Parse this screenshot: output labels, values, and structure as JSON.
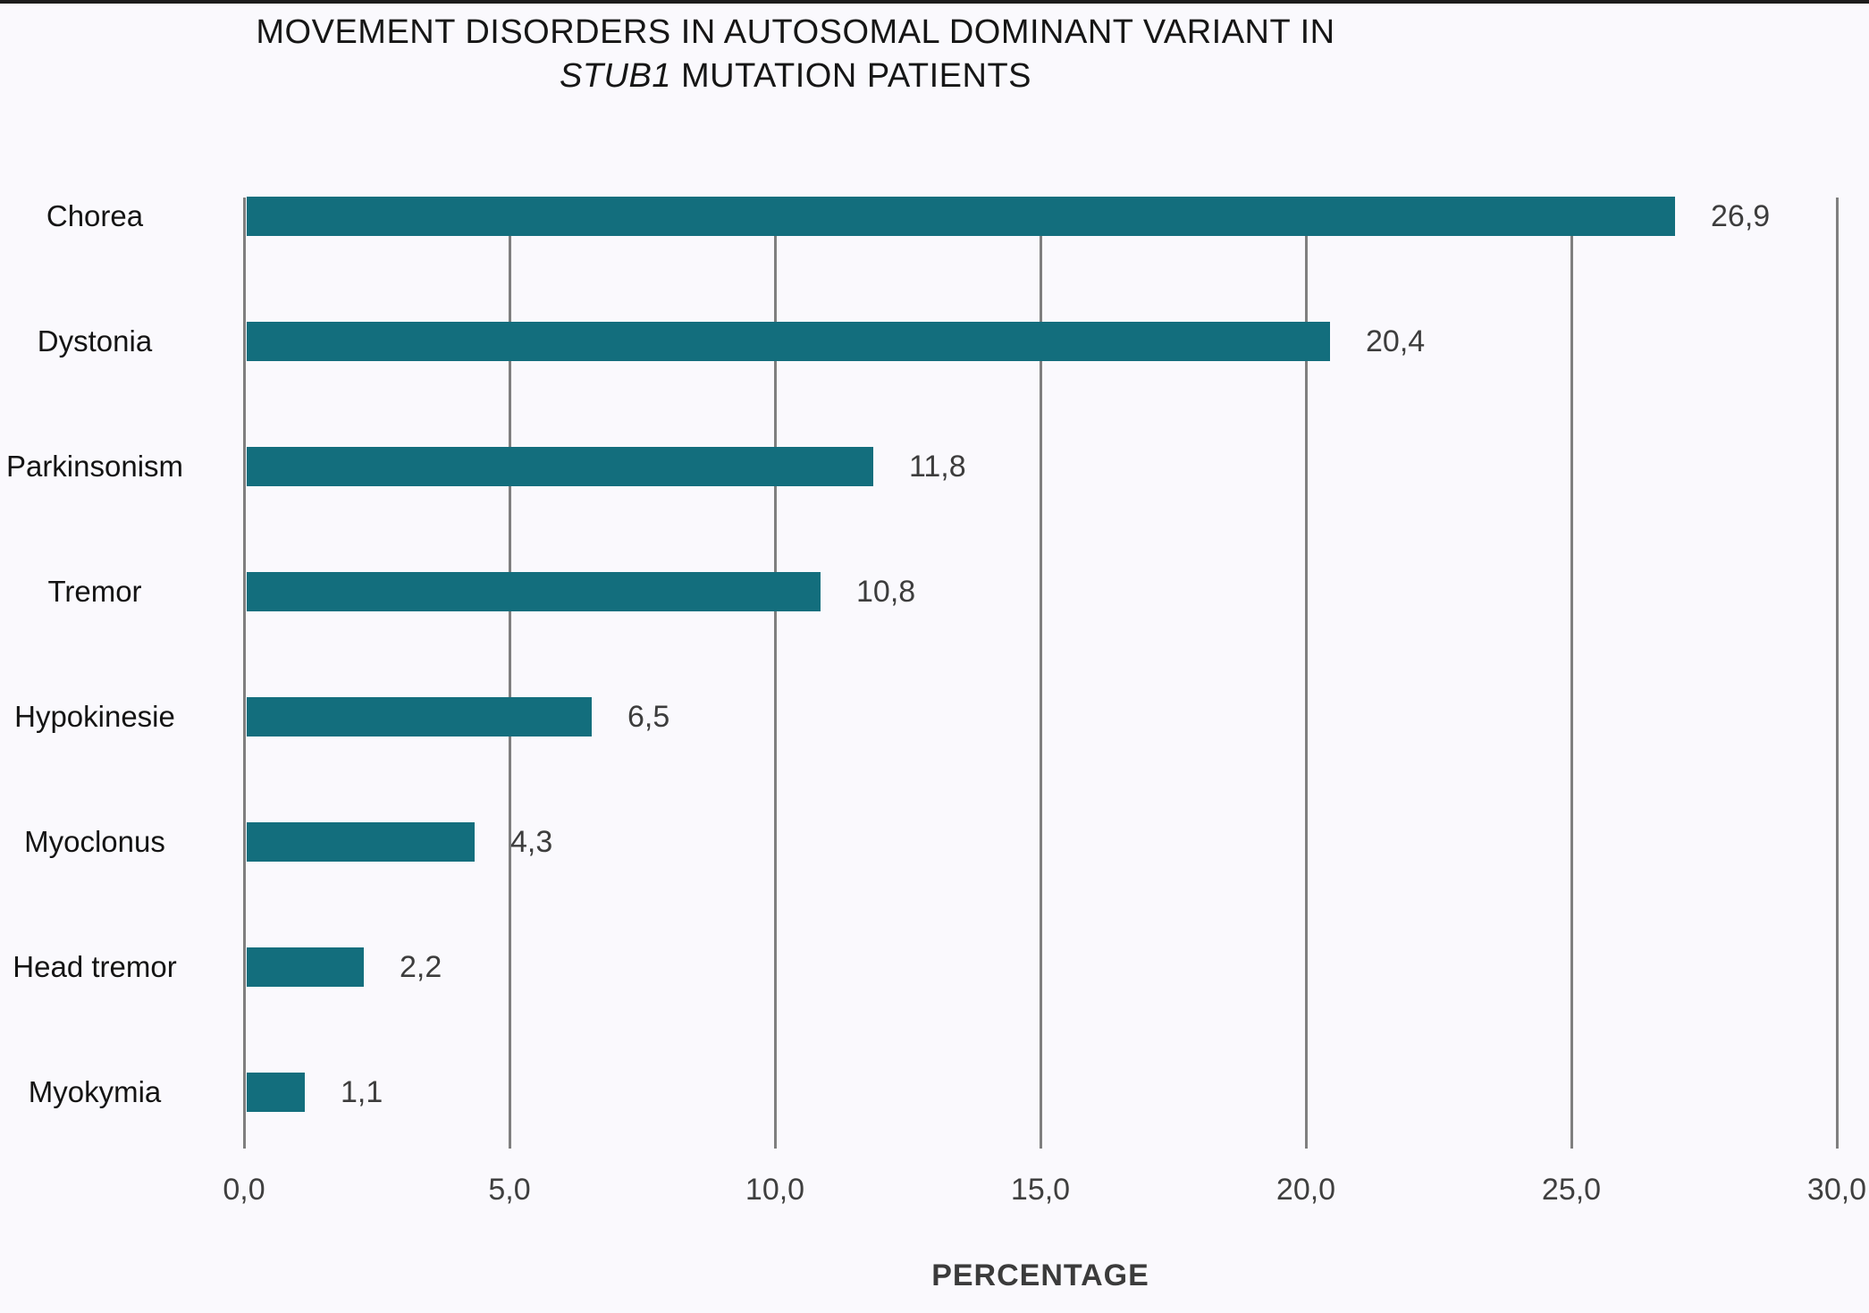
{
  "title": {
    "line1": "MOVEMENT DISORDERS IN AUTOSOMAL DOMINANT VARIANT IN",
    "line2_italic": "STUB1",
    "line2_rest": " MUTATION PATIENTS"
  },
  "chart_data": {
    "type": "bar",
    "orientation": "horizontal",
    "title": "MOVEMENT DISORDERS IN AUTOSOMAL DOMINANT VARIANT IN STUB1 MUTATION PATIENTS",
    "categories": [
      "Chorea",
      "Dystonia",
      "Parkinsonism",
      "Tremor",
      "Hypokinesie",
      "Myoclonus",
      "Head tremor",
      "Myokymia"
    ],
    "values": [
      26.9,
      20.4,
      11.8,
      10.8,
      6.5,
      4.3,
      2.2,
      1.1
    ],
    "value_labels": [
      "26,9",
      "20,4",
      "11,8",
      "10,8",
      "6,5",
      "4,3",
      "2,2",
      "1,1"
    ],
    "xlabel": "PERCENTAGE",
    "ylabel": "",
    "xlim": [
      0,
      30
    ],
    "x_ticks": [
      0,
      5,
      10,
      15,
      20,
      25,
      30
    ],
    "x_tick_labels": [
      "0,0",
      "5,0",
      "10,0",
      "15,0",
      "20,0",
      "25,0",
      "30,0"
    ],
    "grid": "vertical-gridlines-on",
    "legend": "none",
    "bar_color": "#136E7D",
    "gridline_color": "#7f7f7f",
    "background_color": "#FAF9FD"
  }
}
